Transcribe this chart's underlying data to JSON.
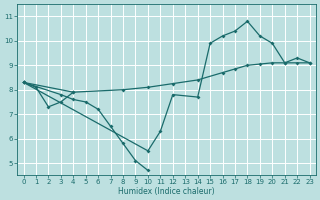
{
  "bg_color": "#bde0e0",
  "grid_color": "#ffffff",
  "line_color": "#1a6b6b",
  "xlabel": "Humidex (Indice chaleur)",
  "xlim": [
    -0.5,
    23.5
  ],
  "ylim": [
    4.5,
    11.5
  ],
  "xticks": [
    0,
    1,
    2,
    3,
    4,
    5,
    6,
    7,
    8,
    9,
    10,
    11,
    12,
    13,
    14,
    15,
    16,
    17,
    18,
    19,
    20,
    21,
    22,
    23
  ],
  "yticks": [
    5,
    6,
    7,
    8,
    9,
    10,
    11
  ],
  "line1_x": [
    0,
    1,
    2,
    3,
    4
  ],
  "line1_y": [
    8.3,
    8.1,
    7.3,
    7.5,
    7.9
  ],
  "line2_x": [
    0,
    3,
    4,
    5,
    6,
    7,
    8,
    9,
    10
  ],
  "line2_y": [
    8.3,
    7.8,
    7.6,
    7.5,
    7.2,
    6.5,
    5.8,
    5.1,
    4.7
  ],
  "line3_x": [
    0,
    4,
    8,
    10,
    12,
    14,
    16,
    17,
    18,
    19,
    20,
    21,
    22,
    23
  ],
  "line3_y": [
    8.3,
    7.9,
    8.0,
    8.1,
    8.25,
    8.4,
    8.7,
    8.85,
    9.0,
    9.05,
    9.1,
    9.1,
    9.1,
    9.1
  ],
  "line4_x": [
    0,
    10,
    11,
    12,
    14,
    15,
    16,
    17,
    18,
    19,
    20,
    21,
    22,
    23
  ],
  "line4_y": [
    8.3,
    5.5,
    6.3,
    7.8,
    7.7,
    9.9,
    10.2,
    10.4,
    10.8,
    10.2,
    9.9,
    9.1,
    9.3,
    9.1
  ]
}
